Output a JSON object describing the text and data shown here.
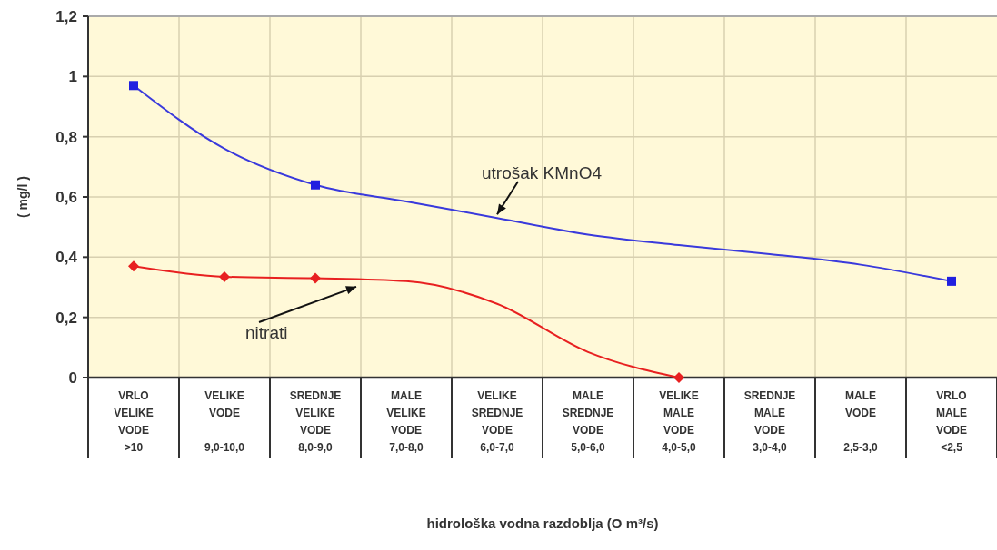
{
  "chart_data": {
    "type": "line",
    "xlabel": "hidrološka vodna razdoblja (O m³/s)",
    "ylabel": "( mg/l )",
    "categories": [
      "VRLO VELIKE VODE\n>10",
      "VELIKE VODE\n9,0-10,0",
      "SREDNJE VELIKE VODE\n8,0-9,0",
      "MALE VELIKE VODE\n7,0-8,0",
      "VELIKE SREDNJE VODE\n6,0-7,0",
      "MALE SREDNJE VODE\n5,0-6,0",
      "VELIKE MALE VODE\n4,0-5,0",
      "SREDNJE MALE VODE\n3,0-4,0",
      "MALE VODE\n2,5-3,0",
      "VRLO MALE VODE\n<2,5"
    ],
    "series": [
      {
        "name": "utrošak KMnO4",
        "color": "#3a3adc",
        "values": [
          0.97,
          0.76,
          0.64,
          0.585,
          0.53,
          0.475,
          0.44,
          0.41,
          0.375,
          0.32
        ],
        "marker": "none"
      },
      {
        "name": "nitrati",
        "color": "#e82020",
        "values": [
          0.37,
          0.335,
          0.33,
          0.32,
          0.245,
          0.085,
          0,
          null,
          null,
          null
        ],
        "marker": "none"
      },
      {
        "type": "scatter",
        "color": "#2020e0",
        "marker": "square",
        "x": [
          "VRLO VELIKE VODE\n>10",
          "SREDNJE VELIKE VODE\n8,0-9,0",
          "VRLO MALE VODE\n<2,5"
        ],
        "values": [
          0.97,
          0.64,
          0.32
        ]
      },
      {
        "type": "scatter",
        "color": "#e82020",
        "marker": "diamond",
        "x": [
          "VRLO VELIKE VODE\n>10",
          "VELIKE VODE\n9,0-10,0",
          "SREDNJE VELIKE VODE\n8,0-9,0",
          "VELIKE MALE VODE\n4,0-5,0"
        ],
        "values": [
          0.37,
          0.335,
          0.33,
          0
        ]
      }
    ],
    "ylim": [
      0,
      1.2
    ],
    "yticks": [
      {
        "value": 0,
        "label": "0"
      },
      {
        "value": 0.2,
        "label": "0,2"
      },
      {
        "value": 0.4,
        "label": "0,4"
      },
      {
        "value": 0.6,
        "label": "0,6"
      },
      {
        "value": 0.8,
        "label": "0,8"
      },
      {
        "value": 1,
        "label": "1"
      },
      {
        "value": 1.2,
        "label": "1,2"
      }
    ],
    "grid": true,
    "line_style": "solid"
  }
}
